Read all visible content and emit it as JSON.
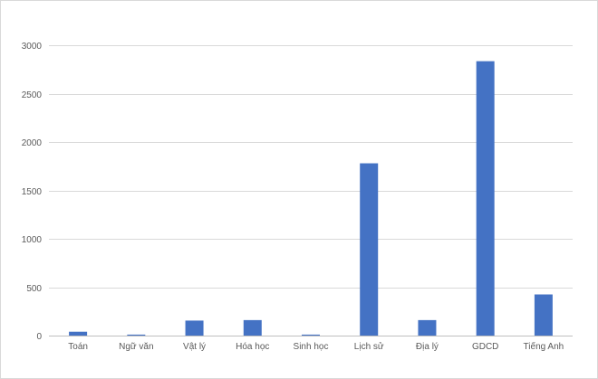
{
  "chart_data": {
    "type": "bar",
    "categories": [
      "Toán",
      "Ngữ văn",
      "Vật lý",
      "Hóa học",
      "Sinh học",
      "Lịch sử",
      "Địa lý",
      "GDCD",
      "Tiếng Anh"
    ],
    "values": [
      40,
      10,
      155,
      160,
      10,
      1780,
      160,
      2835,
      425
    ],
    "ylim": [
      0,
      3000
    ],
    "yticks": [
      0,
      500,
      1000,
      1500,
      2000,
      2500,
      3000
    ],
    "grid": true,
    "legend": "none",
    "bar_color": "#4472c4",
    "grid_color": "#d9d9d9",
    "title": "",
    "xlabel": "",
    "ylabel": ""
  }
}
